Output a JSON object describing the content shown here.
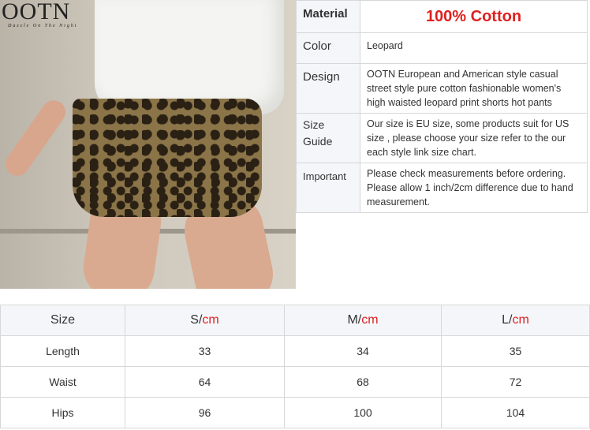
{
  "logo": {
    "brand": "OOTN",
    "tagline": "Dazzle On The Night"
  },
  "info": {
    "material": {
      "label": "Material",
      "value": "100% Cotton"
    },
    "color": {
      "label": "Color",
      "value": "Leopard"
    },
    "design": {
      "label": "Design",
      "value": "OOTN European and American style casual street style pure cotton fashionable women's high waisted leopard print shorts hot pants"
    },
    "size_guide": {
      "label": "Size Guide",
      "value": "Our size is EU size, some products suit for US size , please choose your size refer to the our each style link size chart."
    },
    "important": {
      "label": "Important",
      "value": "Please check measurements before ordering. Please allow 1 inch/2cm difference due to hand measurement."
    }
  },
  "size_table": {
    "header": {
      "first": "Size",
      "cols": [
        {
          "size": "S/",
          "unit": "cm"
        },
        {
          "size": "M/",
          "unit": "cm"
        },
        {
          "size": "L/",
          "unit": "cm"
        }
      ]
    },
    "rows": [
      {
        "label": "Length",
        "values": [
          "33",
          "34",
          "35"
        ]
      },
      {
        "label": "Waist",
        "values": [
          "64",
          "68",
          "72"
        ]
      },
      {
        "label": "Hips",
        "values": [
          "96",
          "100",
          "104"
        ]
      }
    ]
  },
  "colors": {
    "accent": "#e02020",
    "label_bg": "#f5f6fa",
    "border": "#d7d7d7"
  }
}
